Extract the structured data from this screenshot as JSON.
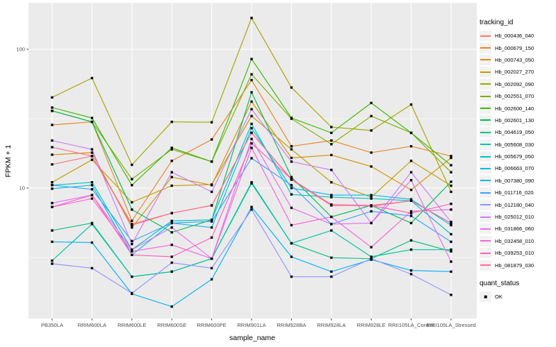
{
  "colors": {
    "page_bg": "#FFFFFF",
    "panel_bg": "#EBEBEB",
    "grid": "#FFFFFF",
    "tick_text": "#4D4D4D",
    "title_text": "#000000",
    "marker": "#000000",
    "legend_key_bg": "#F2F2F2"
  },
  "chart_data": {
    "type": "line",
    "title": "",
    "xlabel": "sample_name",
    "ylabel": "FPKM + 1",
    "y_scale": "log10",
    "y_tick_labels": [
      "100",
      "10"
    ],
    "y_tick_values": [
      100,
      10
    ],
    "y_minor_values": [
      31.6,
      3.16
    ],
    "ylim": [
      1.15,
      216
    ],
    "grid": true,
    "legend_title": "tracking_id",
    "legend_position": "right",
    "x_categories": [
      "PB350LA",
      "RRIM600LA",
      "RRIM600LE",
      "RRIM600SE",
      "RRIM600PE",
      "RRIM901LA",
      "RRIM928BA",
      "RRIM928LA",
      "RRIM928LE",
      "RRII105LA_Control",
      "RRII105LA_Stressed"
    ],
    "marker": "black-square",
    "series": [
      {
        "name": "Hb_000436_040",
        "color": "#F8766D",
        "values": [
          14.8,
          17,
          5.5,
          6.6,
          7.5,
          25,
          11.5,
          7.5,
          7.5,
          8.1,
          5.6
        ]
      },
      {
        "name": "Hb_000679_150",
        "color": "#E88526",
        "values": [
          28.5,
          30,
          5.8,
          15.7,
          22.4,
          60,
          20,
          22,
          18,
          20,
          17
        ]
      },
      {
        "name": "Hb_000743_050",
        "color": "#D39200",
        "values": [
          17.4,
          18,
          5.2,
          12,
          10.5,
          42,
          16.5,
          17.3,
          14.3,
          9.7,
          16.5
        ]
      },
      {
        "name": "Hb_002027_270",
        "color": "#C09B00",
        "values": [
          11,
          16,
          7.9,
          10.4,
          10.6,
          33,
          19,
          11,
          8.6,
          15.7,
          10.4
        ]
      },
      {
        "name": "Hb_002092_090",
        "color": "#A3A500",
        "values": [
          45,
          62,
          14.7,
          30,
          29.8,
          168,
          53,
          27.5,
          26,
          40,
          9.4
        ]
      },
      {
        "name": "Hb_002551_070",
        "color": "#7CAE00",
        "values": [
          36,
          30,
          11.6,
          19,
          15.5,
          66,
          31.6,
          20.7,
          33,
          25,
          13
        ]
      },
      {
        "name": "Hb_002600_140",
        "color": "#39B600",
        "values": [
          38,
          32,
          10.5,
          19.5,
          15.5,
          85,
          32,
          25,
          41,
          25,
          14.6
        ]
      },
      {
        "name": "Hb_002601_130",
        "color": "#00BB4E",
        "values": [
          36,
          30,
          7.0,
          4.8,
          5.9,
          49,
          12,
          6.2,
          7.5,
          5.6,
          11.1
        ]
      },
      {
        "name": "Hb_004619_050",
        "color": "#00BF7D",
        "values": [
          4.95,
          5.6,
          2.3,
          2.5,
          3.1,
          11,
          4.0,
          3.15,
          3.1,
          4.2,
          3.5
        ]
      },
      {
        "name": "Hb_005608_030",
        "color": "#00C1A3",
        "values": [
          3.0,
          5.5,
          2.3,
          2.5,
          3.1,
          10.8,
          4.0,
          4.95,
          3.2,
          3.6,
          3.6
        ]
      },
      {
        "name": "Hb_005679_050",
        "color": "#00BFC4",
        "values": [
          10.5,
          11,
          3.6,
          5.8,
          5.9,
          29,
          9,
          8.6,
          8.4,
          8.1,
          4.65
        ]
      },
      {
        "name": "Hb_006663_070",
        "color": "#00B9E3",
        "values": [
          9.9,
          10.5,
          3.3,
          5.6,
          5.2,
          27,
          10,
          8.9,
          8.9,
          8.3,
          5.4
        ]
      },
      {
        "name": "Hb_007380_090",
        "color": "#00B0F6",
        "values": [
          4.1,
          4.05,
          1.73,
          1.4,
          2.2,
          7.3,
          3.2,
          2.5,
          3.05,
          2.55,
          2.5
        ]
      },
      {
        "name": "Hb_011716_020",
        "color": "#35A2FF",
        "values": [
          10.5,
          9.8,
          4.15,
          5.6,
          5.75,
          16.4,
          10.5,
          5.5,
          6.8,
          6.3,
          4.1
        ]
      },
      {
        "name": "Hb_012180_040",
        "color": "#9590FF",
        "values": [
          2.85,
          2.65,
          1.75,
          2.9,
          2.65,
          7.0,
          2.3,
          2.3,
          3.1,
          2.4,
          1.7
        ]
      },
      {
        "name": "Hb_025012_010",
        "color": "#C77CFF",
        "values": [
          22,
          19,
          3.95,
          13,
          9.4,
          37,
          15.5,
          13.5,
          5.6,
          13,
          5.7
        ]
      },
      {
        "name": "Hb_031866_060",
        "color": "#E76BF3",
        "values": [
          7.8,
          8.9,
          3.6,
          5.2,
          3.1,
          22.6,
          7.2,
          5.5,
          5.6,
          11.4,
          2.95
        ]
      },
      {
        "name": "Hb_032458_010",
        "color": "#FA62DB",
        "values": [
          7.3,
          8.4,
          3.5,
          3.9,
          3.1,
          19.5,
          5.4,
          6.2,
          3.75,
          6.8,
          7.0
        ]
      },
      {
        "name": "Hb_039253_010",
        "color": "#FF62BC",
        "values": [
          7.3,
          8.9,
          3.3,
          3.2,
          4.4,
          21,
          11.6,
          7.6,
          7.5,
          6.6,
          7.7
        ]
      },
      {
        "name": "Hb_081879_030",
        "color": "#FF6A98",
        "values": [
          19.7,
          17,
          5.4,
          6.6,
          7.5,
          25,
          11.6,
          7.6,
          7.4,
          8.1,
          5.6
        ]
      }
    ],
    "quant_status": {
      "title": "quant_status",
      "items": [
        {
          "label": "OK",
          "marker": "black-square"
        }
      ]
    }
  }
}
